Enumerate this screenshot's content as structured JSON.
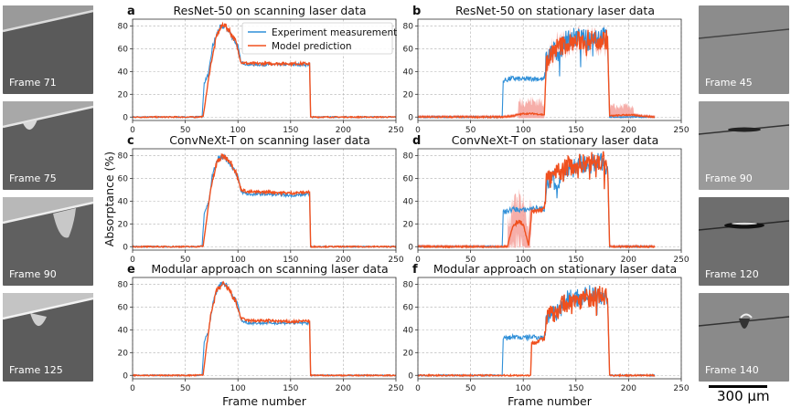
{
  "frames_left": [
    {
      "label": "Frame 71",
      "style": "scan-71"
    },
    {
      "label": "Frame 75",
      "style": "scan-75"
    },
    {
      "label": "Frame 90",
      "style": "scan-90"
    },
    {
      "label": "Frame 125",
      "style": "scan-125"
    }
  ],
  "frames_right": [
    {
      "label": "Frame 45",
      "style": "stat-45"
    },
    {
      "label": "Frame 90",
      "style": "stat-90"
    },
    {
      "label": "Frame 120",
      "style": "stat-120"
    },
    {
      "label": "Frame 140",
      "style": "stat-140"
    }
  ],
  "scalebar": {
    "label": "300 μm"
  },
  "colors": {
    "measurement": "#2f8fd8",
    "prediction": "#f0501e",
    "uncertainty": "#f5a09a",
    "grid": "#b0b0b0"
  },
  "chart_data": [
    {
      "letter": "a",
      "title": "ResNet-50 on scanning laser data",
      "type": "line",
      "mode": "scanning",
      "shade": false,
      "xlim": [
        0,
        250
      ],
      "ylim": [
        -3,
        86
      ],
      "xticks": [
        0,
        50,
        100,
        150,
        200,
        250
      ],
      "yticks": [
        0,
        20,
        40,
        60,
        80
      ],
      "legend": {
        "placement": "top-right",
        "entries": [
          "Experiment measurement",
          "Model prediction"
        ]
      },
      "series": [
        {
          "role": "measurement",
          "points": [
            [
              0,
              0
            ],
            [
              60,
              0
            ],
            [
              66,
              0.5
            ],
            [
              68,
              30
            ],
            [
              72,
              38
            ],
            [
              76,
              62
            ],
            [
              82,
              78
            ],
            [
              88,
              80
            ],
            [
              95,
              70
            ],
            [
              100,
              62
            ],
            [
              103,
              48
            ],
            [
              110,
              46
            ],
            [
              130,
              46
            ],
            [
              150,
              46
            ],
            [
              168,
              46
            ],
            [
              169,
              0
            ],
            [
              250,
              0
            ]
          ]
        },
        {
          "role": "prediction",
          "points": [
            [
              0,
              0
            ],
            [
              60,
              0
            ],
            [
              67,
              0.5
            ],
            [
              70,
              20
            ],
            [
              74,
              45
            ],
            [
              80,
              72
            ],
            [
              86,
              82
            ],
            [
              92,
              76
            ],
            [
              98,
              66
            ],
            [
              103,
              48
            ],
            [
              110,
              47
            ],
            [
              130,
              47
            ],
            [
              150,
              47
            ],
            [
              168,
              47
            ],
            [
              169,
              0
            ],
            [
              250,
              0
            ]
          ]
        }
      ]
    },
    {
      "letter": "b",
      "title": "ResNet-50 on stationary laser data",
      "type": "line",
      "mode": "stationary",
      "shade": true,
      "xlim": [
        0,
        250
      ],
      "ylim": [
        -3,
        86
      ],
      "xticks": [
        0,
        50,
        100,
        150,
        200,
        250
      ],
      "yticks": [
        0,
        20,
        40,
        60,
        80
      ],
      "series": [
        {
          "role": "measurement",
          "points": [
            [
              0,
              0
            ],
            [
              80,
              0
            ],
            [
              81,
              32
            ],
            [
              90,
              34
            ],
            [
              100,
              33
            ],
            [
              110,
              34
            ],
            [
              120,
              33
            ],
            [
              122,
              52
            ],
            [
              128,
              58
            ],
            [
              135,
              58
            ],
            [
              140,
              68
            ],
            [
              150,
              70
            ],
            [
              160,
              68
            ],
            [
              170,
              72
            ],
            [
              180,
              70
            ],
            [
              182,
              0
            ],
            [
              225,
              0
            ]
          ]
        },
        {
          "role": "prediction",
          "points": [
            [
              0,
              0
            ],
            [
              80,
              0
            ],
            [
              90,
              1
            ],
            [
              100,
              3
            ],
            [
              110,
              3
            ],
            [
              120,
              2
            ],
            [
              122,
              48
            ],
            [
              130,
              60
            ],
            [
              140,
              64
            ],
            [
              150,
              66
            ],
            [
              160,
              68
            ],
            [
              170,
              68
            ],
            [
              180,
              68
            ],
            [
              182,
              1
            ],
            [
              200,
              2
            ],
            [
              225,
              0
            ]
          ]
        }
      ]
    },
    {
      "letter": "c",
      "title": "ConvNeXt-T on scanning laser data",
      "type": "line",
      "mode": "scanning",
      "shade": false,
      "xlim": [
        0,
        250
      ],
      "ylim": [
        -3,
        86
      ],
      "xticks": [
        0,
        50,
        100,
        150,
        200,
        250
      ],
      "yticks": [
        0,
        20,
        40,
        60,
        80
      ],
      "series": [
        {
          "role": "measurement",
          "points": [
            [
              0,
              0
            ],
            [
              60,
              0
            ],
            [
              66,
              0.5
            ],
            [
              68,
              30
            ],
            [
              72,
              38
            ],
            [
              76,
              64
            ],
            [
              82,
              80
            ],
            [
              88,
              78
            ],
            [
              95,
              70
            ],
            [
              100,
              62
            ],
            [
              103,
              48
            ],
            [
              110,
              46
            ],
            [
              130,
              46
            ],
            [
              150,
              45
            ],
            [
              168,
              46
            ],
            [
              169,
              0
            ],
            [
              250,
              0
            ]
          ]
        },
        {
          "role": "prediction",
          "points": [
            [
              0,
              0
            ],
            [
              60,
              0
            ],
            [
              67,
              0.5
            ],
            [
              70,
              22
            ],
            [
              74,
              50
            ],
            [
              80,
              74
            ],
            [
              86,
              80
            ],
            [
              92,
              76
            ],
            [
              98,
              66
            ],
            [
              103,
              50
            ],
            [
              110,
              48
            ],
            [
              130,
              48
            ],
            [
              150,
              47
            ],
            [
              168,
              48
            ],
            [
              169,
              0
            ],
            [
              250,
              0
            ]
          ]
        }
      ]
    },
    {
      "letter": "d",
      "title": "ConvNeXt-T on stationary laser data",
      "type": "line",
      "mode": "stationary",
      "shade": true,
      "xlim": [
        0,
        250
      ],
      "ylim": [
        -3,
        86
      ],
      "xticks": [
        0,
        50,
        100,
        150,
        200,
        250
      ],
      "yticks": [
        0,
        20,
        40,
        60,
        80
      ],
      "series": [
        {
          "role": "measurement",
          "points": [
            [
              0,
              0
            ],
            [
              80,
              0
            ],
            [
              81,
              30
            ],
            [
              90,
              33
            ],
            [
              100,
              32
            ],
            [
              110,
              34
            ],
            [
              120,
              33
            ],
            [
              122,
              55
            ],
            [
              128,
              58
            ],
            [
              135,
              60
            ],
            [
              140,
              68
            ],
            [
              150,
              70
            ],
            [
              160,
              72
            ],
            [
              170,
              74
            ],
            [
              180,
              72
            ],
            [
              182,
              0
            ],
            [
              225,
              0
            ]
          ]
        },
        {
          "role": "prediction",
          "points": [
            [
              0,
              0
            ],
            [
              85,
              0
            ],
            [
              90,
              18
            ],
            [
              95,
              22
            ],
            [
              100,
              20
            ],
            [
              105,
              1
            ],
            [
              108,
              30
            ],
            [
              115,
              32
            ],
            [
              120,
              33
            ],
            [
              122,
              58
            ],
            [
              130,
              62
            ],
            [
              140,
              70
            ],
            [
              150,
              72
            ],
            [
              160,
              74
            ],
            [
              170,
              76
            ],
            [
              180,
              74
            ],
            [
              182,
              0
            ],
            [
              225,
              0
            ]
          ]
        }
      ]
    },
    {
      "letter": "e",
      "title": "Modular approach on scanning laser data",
      "type": "line",
      "mode": "scanning",
      "shade": false,
      "xlim": [
        0,
        250
      ],
      "ylim": [
        -3,
        86
      ],
      "xticks": [
        0,
        50,
        100,
        150,
        200,
        250
      ],
      "yticks": [
        0,
        20,
        40,
        60,
        80
      ],
      "xlabel": "Frame number",
      "series": [
        {
          "role": "measurement",
          "points": [
            [
              0,
              0
            ],
            [
              60,
              0
            ],
            [
              66,
              0.5
            ],
            [
              68,
              30
            ],
            [
              72,
              38
            ],
            [
              76,
              62
            ],
            [
              82,
              80
            ],
            [
              88,
              80
            ],
            [
              95,
              70
            ],
            [
              100,
              62
            ],
            [
              103,
              48
            ],
            [
              110,
              46
            ],
            [
              130,
              46
            ],
            [
              150,
              46
            ],
            [
              168,
              46
            ],
            [
              169,
              0
            ],
            [
              250,
              0
            ]
          ]
        },
        {
          "role": "prediction",
          "points": [
            [
              0,
              0
            ],
            [
              60,
              0
            ],
            [
              67,
              0.5
            ],
            [
              70,
              24
            ],
            [
              74,
              52
            ],
            [
              80,
              75
            ],
            [
              86,
              80
            ],
            [
              92,
              75
            ],
            [
              98,
              64
            ],
            [
              103,
              50
            ],
            [
              110,
              48
            ],
            [
              130,
              48
            ],
            [
              150,
              47
            ],
            [
              168,
              48
            ],
            [
              169,
              0
            ],
            [
              250,
              0
            ]
          ]
        }
      ]
    },
    {
      "letter": "f",
      "title": "Modular approach on stationary laser data",
      "type": "line",
      "mode": "stationary",
      "shade": false,
      "xlim": [
        0,
        250
      ],
      "ylim": [
        -3,
        86
      ],
      "xticks": [
        0,
        50,
        100,
        150,
        200,
        250
      ],
      "yticks": [
        0,
        20,
        40,
        60,
        80
      ],
      "xlabel": "Frame number",
      "series": [
        {
          "role": "measurement",
          "points": [
            [
              0,
              0
            ],
            [
              80,
              0
            ],
            [
              81,
              32
            ],
            [
              90,
              34
            ],
            [
              100,
              33
            ],
            [
              110,
              34
            ],
            [
              120,
              33
            ],
            [
              122,
              52
            ],
            [
              128,
              56
            ],
            [
              135,
              58
            ],
            [
              140,
              66
            ],
            [
              150,
              68
            ],
            [
              160,
              70
            ],
            [
              170,
              72
            ],
            [
              180,
              70
            ],
            [
              182,
              0
            ],
            [
              225,
              0
            ]
          ]
        },
        {
          "role": "prediction",
          "points": [
            [
              0,
              0
            ],
            [
              107,
              0
            ],
            [
              108,
              28
            ],
            [
              115,
              31
            ],
            [
              120,
              32
            ],
            [
              122,
              50
            ],
            [
              130,
              56
            ],
            [
              140,
              64
            ],
            [
              150,
              66
            ],
            [
              160,
              68
            ],
            [
              170,
              70
            ],
            [
              180,
              70
            ],
            [
              182,
              0
            ],
            [
              225,
              0
            ]
          ]
        }
      ]
    }
  ],
  "shared_ylabel": "Absorptance (%)"
}
